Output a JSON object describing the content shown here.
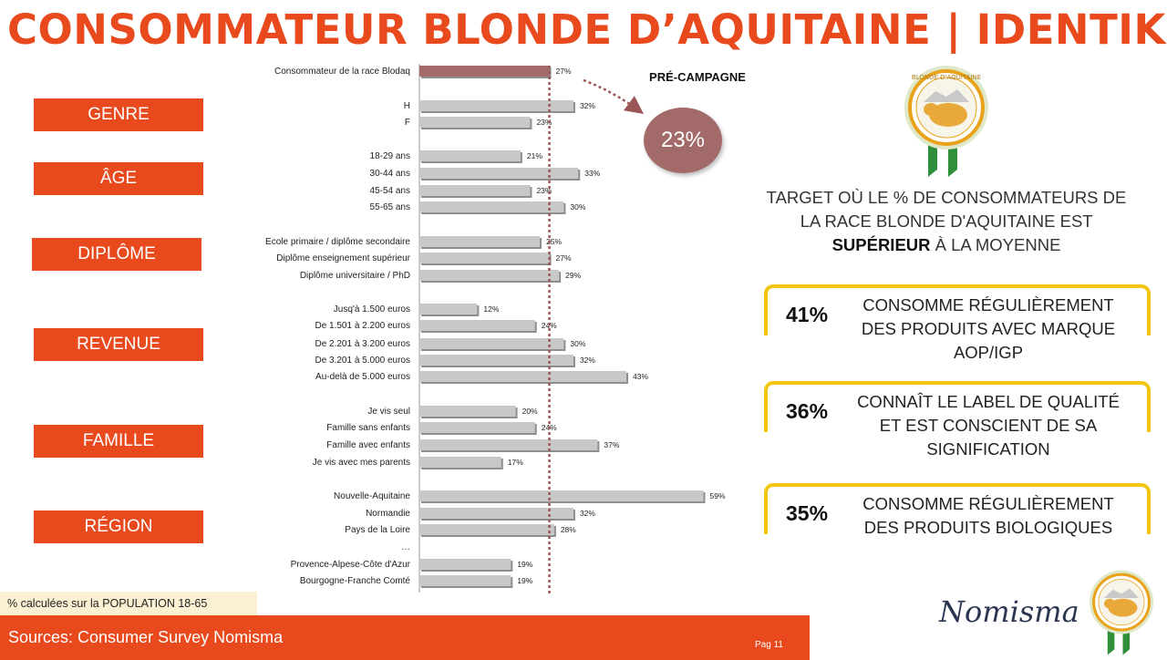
{
  "title": "CONSOMMATEUR BLONDE D’AQUITAINE | IDENTIKIT",
  "categories": {
    "genre": "GENRE",
    "age": "ÂGE",
    "diplome": "DIPLÔME",
    "revenue": "REVENUE",
    "famille": "FAMILLE",
    "region": "RÉGION"
  },
  "chart_data": {
    "type": "bar",
    "orientation": "horizontal",
    "reference_value": 27,
    "reference_label": "Consommateur de la race Blodaq",
    "xlim": [
      0,
      60
    ],
    "rows": [
      {
        "label": "Consommateur de la race Blodaq",
        "value": 27,
        "display": "27%",
        "highlight": true
      },
      {
        "label": "H",
        "value": 32,
        "display": "32%"
      },
      {
        "label": "F",
        "value": 23,
        "display": "23%"
      },
      {
        "label": "18-29 ans",
        "value": 21,
        "display": "21%"
      },
      {
        "label": "30-44 ans",
        "value": 33,
        "display": "33%"
      },
      {
        "label": "45-54 ans",
        "value": 23,
        "display": "23%"
      },
      {
        "label": "55-65 ans",
        "value": 30,
        "display": "30%"
      },
      {
        "label": "Ecole primaire / diplôme secondaire",
        "value": 25,
        "display": "25%"
      },
      {
        "label": "Diplôme enseignement supérieur",
        "value": 27,
        "display": "27%"
      },
      {
        "label": "Diplôme universitaire / PhD",
        "value": 29,
        "display": "29%"
      },
      {
        "label": "Jusq'à 1.500 euros",
        "value": 12,
        "display": "12%"
      },
      {
        "label": "De 1.501 à 2.200 euros",
        "value": 24,
        "display": "24%"
      },
      {
        "label": "De 2.201 à 3.200 euros",
        "value": 30,
        "display": "30%"
      },
      {
        "label": "De 3.201 à 5.000 euros",
        "value": 32,
        "display": "32%"
      },
      {
        "label": "Au-delà de 5.000 euros",
        "value": 43,
        "display": "43%"
      },
      {
        "label": "Je vis seul",
        "value": 20,
        "display": "20%"
      },
      {
        "label": "Famille sans enfants",
        "value": 24,
        "display": "24%"
      },
      {
        "label": "Famille avec enfants",
        "value": 37,
        "display": "37%"
      },
      {
        "label": "Je vis avec mes parents",
        "value": 17,
        "display": "17%"
      },
      {
        "label": "Nouvelle-Aquitaine",
        "value": 59,
        "display": "59%"
      },
      {
        "label": "Normandie",
        "value": 32,
        "display": "32%"
      },
      {
        "label": "Pays de la Loire",
        "value": 28,
        "display": "28%"
      },
      {
        "label": "…",
        "value": null,
        "display": ""
      },
      {
        "label": "Provence-Alpese-Côte d'Azur",
        "value": 19,
        "display": "19%"
      },
      {
        "label": "Bourgogne-Franche Comté",
        "value": 19,
        "display": "19%"
      }
    ]
  },
  "pre_campagne": {
    "label": "PRÉ-CAMPAGNE",
    "value": "23%"
  },
  "target_text": {
    "line1": "TARGET OÙ LE % DE CONSOMMATEURS DE LA RACE BLONDE D'AQUITAINE EST",
    "bold": "SUPÉRIEUR",
    "line2": "À LA MOYENNE"
  },
  "stats": [
    {
      "pct": "41%",
      "text": "CONSOMME RÉGULIÈREMENT DES PRODUITS AVEC MARQUE AOP/IGP"
    },
    {
      "pct": "36%",
      "text": "CONNAÎT LE LABEL DE QUALITÉ ET EST CONSCIENT DE SA SIGNIFICATION"
    },
    {
      "pct": "35%",
      "text": "CONSOMME RÉGULIÈREMENT DES PRODUITS BIOLOGIQUES"
    }
  ],
  "note": "% calculées sur la POPULATION 18-65",
  "sources": "Sources: Consumer Survey Nomisma",
  "page": "Pag 11",
  "brand": "Nomisma",
  "logo_text": "BLONDE D'AQUITAINE",
  "colors": {
    "accent": "#e8491d",
    "highlight_bar": "#a36a6a",
    "bar": "#c8c8c8",
    "ref_line": "#9a5656",
    "gold": "#f2c511"
  }
}
